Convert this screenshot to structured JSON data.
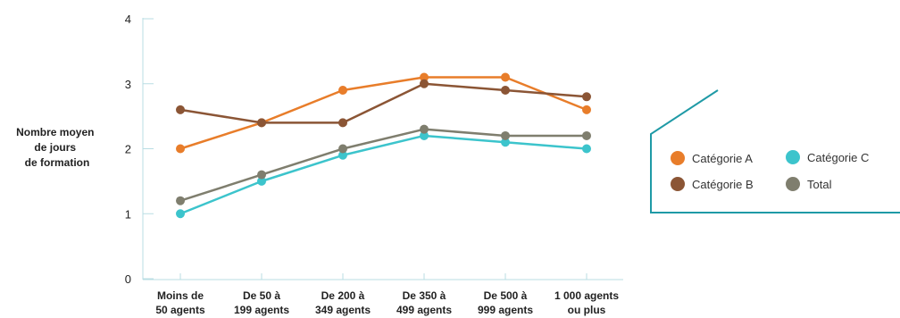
{
  "chart_data": {
    "type": "line",
    "categories": [
      [
        "Moins de",
        "50 agents"
      ],
      [
        "De 50 à",
        "199 agents"
      ],
      [
        "De 200 à",
        "349 agents"
      ],
      [
        "De 350 à",
        "499 agents"
      ],
      [
        "De 500 à",
        "999 agents"
      ],
      [
        "1 000 agents",
        "ou plus"
      ]
    ],
    "ylabel": [
      "Nombre moyen",
      "de jours",
      "de formation"
    ],
    "ylim": [
      0,
      4
    ],
    "yticks": [
      "0",
      "1",
      "2",
      "3",
      "4"
    ],
    "grid": false,
    "legend_position": "right",
    "series": [
      {
        "name": "Catégorie A",
        "color": "#e87d2a",
        "values": [
          2.0,
          2.4,
          2.9,
          3.1,
          3.1,
          2.6
        ]
      },
      {
        "name": "Catégorie B",
        "color": "#8b5535",
        "values": [
          2.6,
          2.4,
          2.4,
          3.0,
          2.9,
          2.8
        ]
      },
      {
        "name": "Catégorie C",
        "color": "#3cc4cc",
        "values": [
          1.0,
          1.5,
          1.9,
          2.2,
          2.1,
          2.0
        ]
      },
      {
        "name": "Total",
        "color": "#7f7e6e",
        "values": [
          1.2,
          1.6,
          2.0,
          2.3,
          2.2,
          2.2
        ]
      }
    ],
    "legend_frame_color": "#1f9aa6"
  }
}
